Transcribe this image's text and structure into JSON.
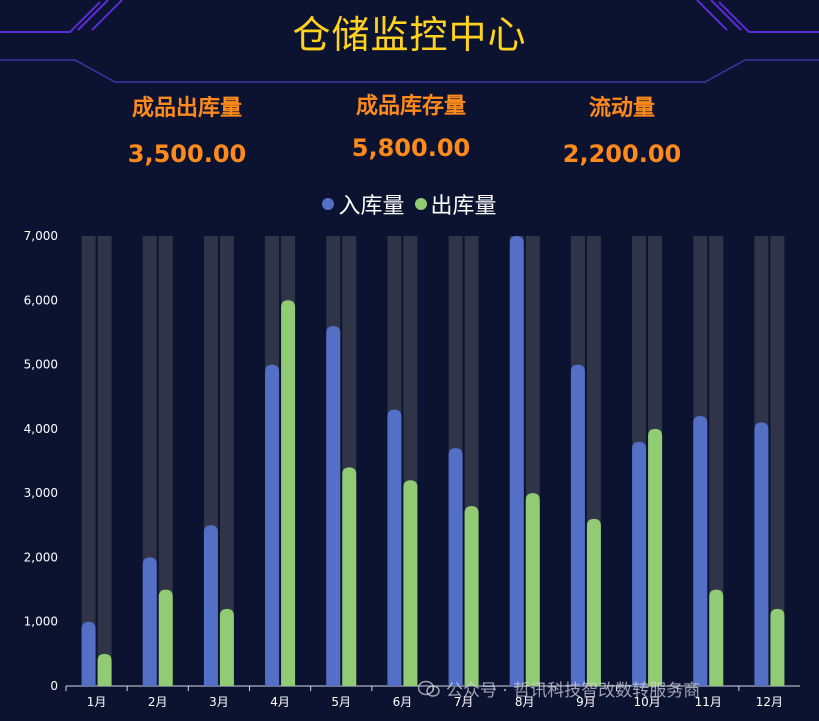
{
  "header": {
    "title": "仓储监控中心"
  },
  "kpis": [
    {
      "label": "成品出库量",
      "value": "3,500.00"
    },
    {
      "label": "成品库存量",
      "value": "5,800.00"
    },
    {
      "label": "流动量",
      "value": "2,200.00"
    }
  ],
  "colors": {
    "background": "#0c1330",
    "title": "#ffd21e",
    "kpi": "#ff8a1c",
    "frame_line": "#6a2ee0",
    "bar_background": "#2f3448"
  },
  "chart_data": {
    "type": "bar",
    "categories": [
      "1月",
      "2月",
      "3月",
      "4月",
      "5月",
      "6月",
      "7月",
      "8月",
      "9月",
      "10月",
      "11月",
      "12月"
    ],
    "series": [
      {
        "name": "入库量",
        "color": "#5470c6",
        "values": [
          1000,
          2000,
          2500,
          5000,
          5600,
          4300,
          3700,
          7000,
          5000,
          3800,
          4200,
          4100
        ]
      },
      {
        "name": "出库量",
        "color": "#91cc75",
        "values": [
          500,
          1500,
          1200,
          6000,
          3400,
          3200,
          2800,
          3000,
          2600,
          4000,
          1500,
          1200
        ]
      }
    ],
    "ylim": [
      0,
      7000
    ],
    "yticks": [
      "0",
      "1,000",
      "2,000",
      "3,000",
      "4,000",
      "5,000",
      "6,000",
      "7,000"
    ],
    "legend_position": "top-center",
    "show_background_bars": true
  },
  "watermark": {
    "text": "公众号 · 哲讯科技智改数转服务商"
  }
}
